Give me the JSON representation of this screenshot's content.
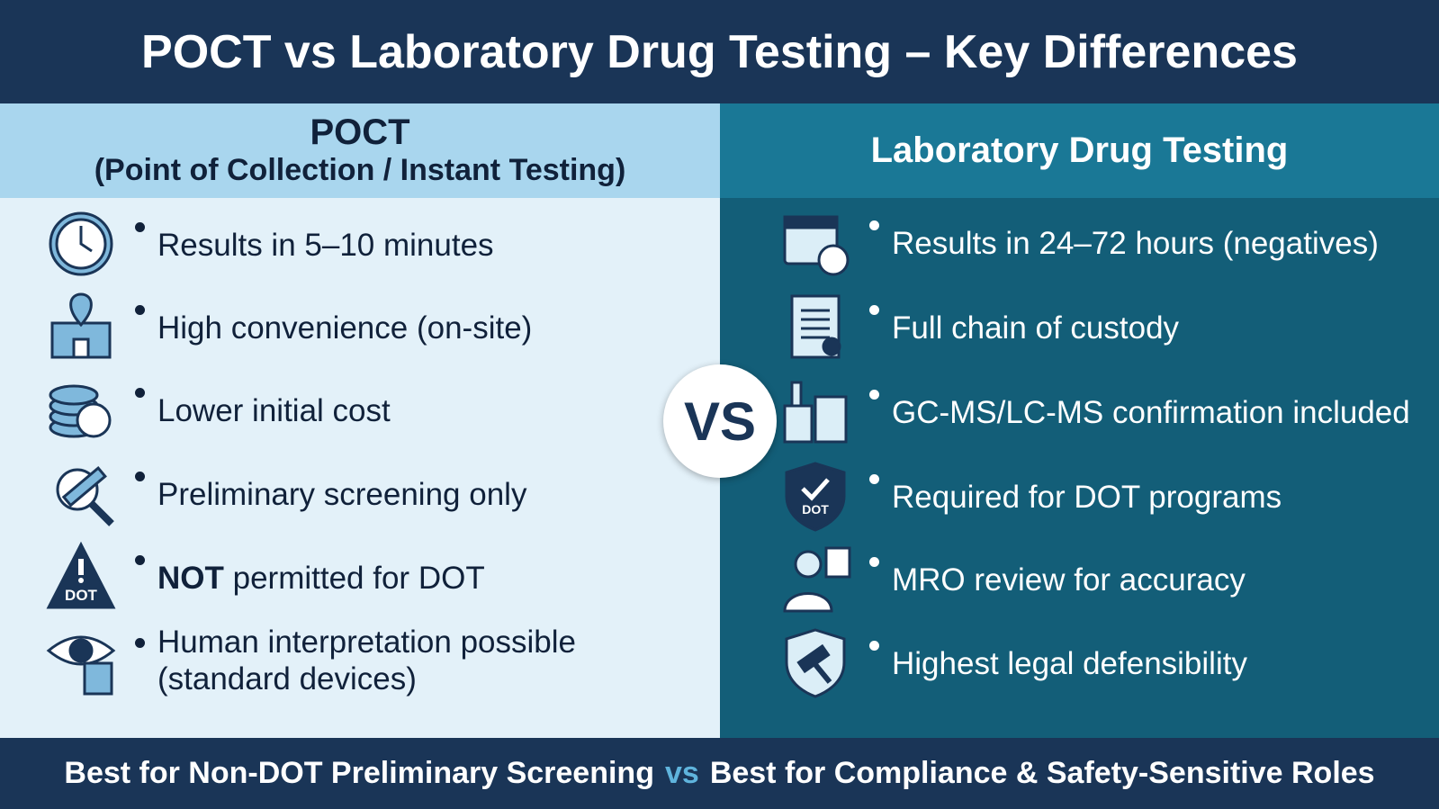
{
  "header": {
    "title": "POCT vs Laboratory Drug Testing – Key Differences"
  },
  "left": {
    "title": "POCT",
    "subtitle": "(Point of Collection / Instant Testing)",
    "items": [
      {
        "text": "Results in 5–10 minutes"
      },
      {
        "text": "High convenience (on-site)"
      },
      {
        "text": "Lower initial cost"
      },
      {
        "text": "Preliminary screening only"
      },
      {
        "emphasis": "NOT",
        "text": "permitted for DOT",
        "icon_text": "DOT"
      },
      {
        "text": "Human interpretation possible (standard devices)"
      }
    ]
  },
  "right": {
    "title": "Laboratory Drug Testing",
    "items": [
      {
        "text": "Results in 24–72 hours (negatives)"
      },
      {
        "text": "Full chain of custody"
      },
      {
        "text": "GC-MS/LC-MS confirmation included"
      },
      {
        "text": "Required for DOT programs",
        "icon_text": "DOT"
      },
      {
        "text": "MRO review for accuracy"
      },
      {
        "text": "Highest legal defensibility"
      }
    ]
  },
  "versus": "VS",
  "footer": {
    "left": "Best for Non-DOT Preliminary Screening",
    "separator": "vs",
    "right": "Best for Compliance & Safety-Sensitive Roles"
  }
}
